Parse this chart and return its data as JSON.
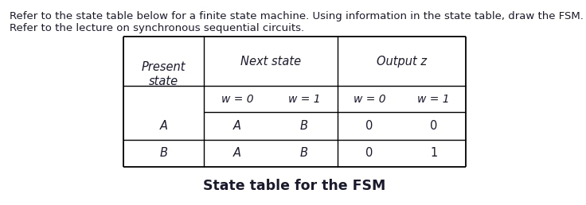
{
  "line1": "Refer to the state table below for a finite state machine. Using information in the state table, draw the FSM.",
  "line2": "Refer to the lecture on synchronous sequential circuits.",
  "caption": "State table for the FSM",
  "data_rows": [
    [
      "A",
      "A",
      "B",
      "0",
      "0"
    ],
    [
      "B",
      "A",
      "B",
      "0",
      "1"
    ]
  ],
  "bg_color": "#ffffff",
  "text_color": "#1a1a2e",
  "font_size_body": 9.5,
  "font_size_table": 10.5,
  "font_size_caption": 12.5
}
